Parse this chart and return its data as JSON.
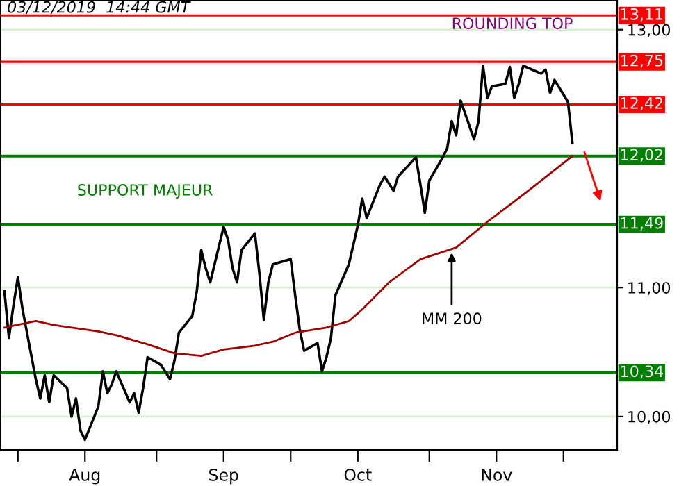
{
  "chart_data": {
    "type": "line",
    "series": [
      {
        "color": "#000000",
        "x": [
          "2019-07-29",
          "2019-07-30",
          "2019-07-31",
          "2019-08-01",
          "2019-08-02",
          "2019-08-05",
          "2019-08-06",
          "2019-08-07",
          "2019-08-08",
          "2019-08-09",
          "2019-08-12",
          "2019-08-13",
          "2019-08-14",
          "2019-08-15",
          "2019-08-16",
          "2019-08-19",
          "2019-08-20",
          "2019-08-21",
          "2019-08-22",
          "2019-08-23",
          "2019-08-26",
          "2019-08-27",
          "2019-08-28",
          "2019-08-29",
          "2019-08-30",
          "2019-09-02",
          "2019-09-04",
          "2019-09-05",
          "2019-09-06",
          "2019-09-09",
          "2019-09-10",
          "2019-09-11",
          "2019-09-12",
          "2019-09-13",
          "2019-09-16",
          "2019-09-17",
          "2019-09-18",
          "2019-09-19",
          "2019-09-20",
          "2019-09-23",
          "2019-09-24",
          "2019-09-25",
          "2019-09-26",
          "2019-09-27",
          "2019-10-01",
          "2019-10-02",
          "2019-10-03",
          "2019-10-04",
          "2019-10-07",
          "2019-10-08",
          "2019-10-09",
          "2019-10-10",
          "2019-10-11",
          "2019-10-14",
          "2019-10-16",
          "2019-10-17",
          "2019-10-18",
          "2019-10-21",
          "2019-10-22",
          "2019-10-24",
          "2019-10-25",
          "2019-10-29",
          "2019-10-30",
          "2019-10-31",
          "2019-11-01",
          "2019-11-04",
          "2019-11-05",
          "2019-11-06",
          "2019-11-07",
          "2019-11-08",
          "2019-11-11",
          "2019-11-12",
          "2019-11-13",
          "2019-11-14",
          "2019-11-15",
          "2019-11-18",
          "2019-11-19",
          "2019-11-20",
          "2019-11-21",
          "2019-11-22",
          "2019-11-26",
          "2019-11-27",
          "2019-11-28",
          "2019-11-29",
          "2019-12-02",
          "2019-12-03"
        ],
        "values": [
          10.97,
          10.61,
          10.86,
          11.08,
          10.84,
          10.29,
          10.14,
          10.32,
          10.11,
          10.32,
          10.22,
          10.0,
          10.14,
          9.89,
          9.82,
          10.08,
          10.35,
          10.18,
          10.25,
          10.35,
          10.11,
          10.18,
          10.03,
          10.22,
          10.46,
          10.4,
          10.29,
          10.43,
          10.65,
          10.78,
          10.97,
          11.29,
          11.15,
          11.04,
          11.47,
          11.37,
          11.15,
          11.04,
          11.29,
          11.42,
          11.11,
          10.75,
          11.04,
          11.18,
          11.22,
          10.94,
          10.68,
          10.51,
          10.57,
          10.35,
          10.46,
          10.61,
          10.94,
          11.18,
          11.48,
          11.69,
          11.54,
          11.8,
          11.86,
          11.75,
          11.86,
          12.01,
          11.8,
          11.58,
          11.83,
          12.01,
          12.08,
          12.29,
          12.18,
          12.45,
          12.15,
          12.29,
          12.72,
          12.47,
          12.56,
          12.58,
          12.71,
          12.47,
          12.58,
          12.72,
          12.66,
          12.69,
          12.51,
          12.61,
          12.44,
          12.12
        ]
      },
      {
        "color": "#a00000",
        "x": [
          "2019-07-29",
          "2019-08-05",
          "2019-08-09",
          "2019-08-19",
          "2019-08-23",
          "2019-08-30",
          "2019-09-05",
          "2019-09-11",
          "2019-09-16",
          "2019-09-23",
          "2019-09-27",
          "2019-10-02",
          "2019-10-09",
          "2019-10-14",
          "2019-10-17",
          "2019-10-23",
          "2019-10-30",
          "2019-11-07",
          "2019-11-14",
          "2019-11-22",
          "2019-12-03"
        ],
        "values": [
          10.69,
          10.74,
          10.71,
          10.66,
          10.63,
          10.56,
          10.49,
          10.47,
          10.52,
          10.55,
          10.58,
          10.65,
          10.69,
          10.74,
          10.83,
          11.04,
          11.22,
          11.31,
          11.51,
          11.72,
          12.02
        ]
      }
    ],
    "xlim": [
      "2019-07-28",
      "2019-12-13"
    ],
    "xticks": [
      {
        "value": "2019-08-01",
        "label": null
      },
      {
        "value": "2019-08-16",
        "label": "Aug"
      },
      {
        "value": "2019-09-01",
        "label": null
      },
      {
        "value": "2019-09-16",
        "label": "Sep"
      },
      {
        "value": "2019-10-01",
        "label": null
      },
      {
        "value": "2019-10-16",
        "label": "Oct"
      },
      {
        "value": "2019-11-01",
        "label": null
      },
      {
        "value": "2019-11-16",
        "label": "Nov"
      },
      {
        "value": "2019-12-01",
        "label": null
      }
    ],
    "ylim": [
      9.74,
      13.23
    ],
    "yticks": [
      {
        "value": 10,
        "label": "10,00"
      },
      {
        "value": 11,
        "label": "11,00"
      },
      {
        "value": 13,
        "label": "13,00"
      }
    ],
    "grid": "y",
    "ref_lines": [
      {
        "axis": "y",
        "value": 13.11,
        "label": "13,11",
        "color": "#ff0000"
      },
      {
        "axis": "y",
        "value": 12.75,
        "label": "12,75",
        "color": "#ff0000"
      },
      {
        "axis": "y",
        "value": 12.42,
        "label": "12,42",
        "color": "#ff0000"
      },
      {
        "axis": "y",
        "value": 12.02,
        "label": "12,02",
        "color": "#008000"
      },
      {
        "axis": "y",
        "value": 11.49,
        "label": "11,49",
        "color": "#008000"
      },
      {
        "axis": "y",
        "value": 10.34,
        "label": "10,34",
        "color": "#008000"
      }
    ],
    "annotations": [
      "03/12/2019  14:44 GMT",
      "ROUNDING TOP",
      "SUPPORT MAJEUR",
      {
        "text": "MM 200",
        "x": "2019-11-06",
        "y": 11.3
      }
    ]
  }
}
